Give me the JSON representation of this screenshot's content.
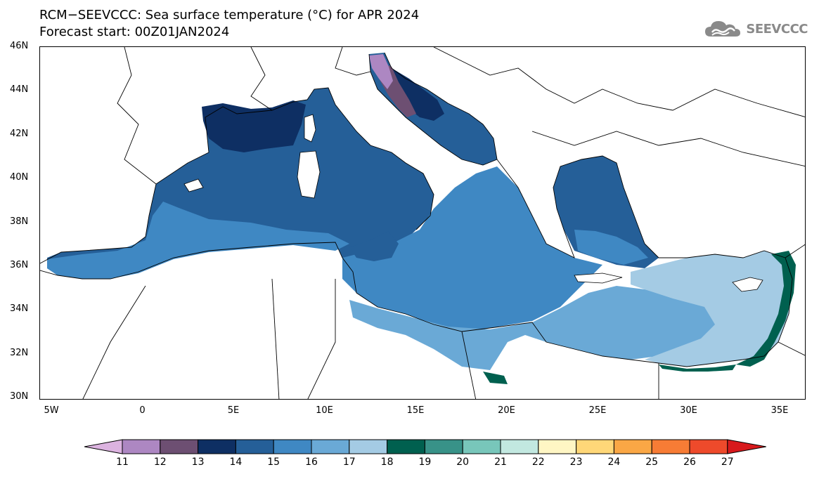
{
  "title": {
    "line1": "RCM−SEEVCCC: Sea surface temperature (°C) for APR 2024",
    "line2": "Forecast start: 00Z01JAN2024"
  },
  "logo": {
    "text": "SEEVCCC",
    "icon": "cloud-icon"
  },
  "map": {
    "lat_range": [
      30,
      46
    ],
    "lon_range": [
      -6,
      36.5
    ],
    "lat_ticks": [
      "46N",
      "44N",
      "42N",
      "40N",
      "38N",
      "36N",
      "34N",
      "32N",
      "30N"
    ],
    "lon_ticks": [
      "5W",
      "0",
      "5E",
      "10E",
      "15E",
      "20E",
      "25E",
      "30E",
      "35E"
    ],
    "variable_unit": "°C"
  },
  "colorbar": {
    "labels": [
      "11",
      "12",
      "13",
      "14",
      "15",
      "16",
      "17",
      "18",
      "19",
      "20",
      "21",
      "22",
      "23",
      "24",
      "25",
      "26",
      "27"
    ],
    "colors": [
      "#dcb3e0",
      "#ad87c2",
      "#6d4f72",
      "#0e2f63",
      "#255f98",
      "#3f88c3",
      "#6aa9d6",
      "#a4cbe4",
      "#00604f",
      "#389288",
      "#78c6ba",
      "#c2e8e0",
      "#fff6c4",
      "#ffd778",
      "#faa745",
      "#f77c35",
      "#ee4a2b",
      "#d7191c"
    ]
  },
  "sst_fill": {
    "west_med": "#255f98",
    "gulf_of_lion": "#0e2f63",
    "adriatic_north": "#ad87c2",
    "adriatic_mid": "#6d4f72",
    "ionian_central": "#3f88c3",
    "libyan_sea": "#6aa9d6",
    "levantine": "#a4cbe4",
    "coastal_warm": "#00604f"
  }
}
